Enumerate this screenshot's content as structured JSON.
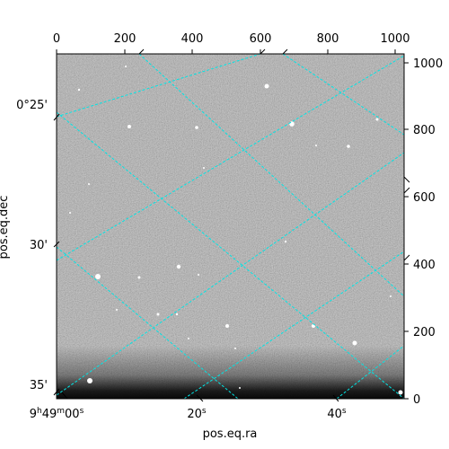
{
  "figure": {
    "top_axis_ticks": [
      "0",
      "200",
      "400",
      "600",
      "800",
      "1000"
    ],
    "right_axis_ticks": [
      "0",
      "200",
      "400",
      "600",
      "800",
      "1000"
    ],
    "left_axis_ticks": [
      "0°25'",
      "30'",
      "35'"
    ],
    "bottom_axis_ticks": [
      {
        "main": "9",
        "sup1": "h",
        "mid": "49",
        "sup2": "m",
        "tail": "00",
        "sup3": "s"
      },
      {
        "main": "20",
        "sup1": "s"
      },
      {
        "main": "40",
        "sup1": "s"
      }
    ],
    "xlabel": "pos.eq.ra",
    "ylabel": "pos.eq.dec",
    "grid_color": "#00e5e5",
    "image_style": "grayscale noise background with bright point sources, dark band at bottom"
  }
}
